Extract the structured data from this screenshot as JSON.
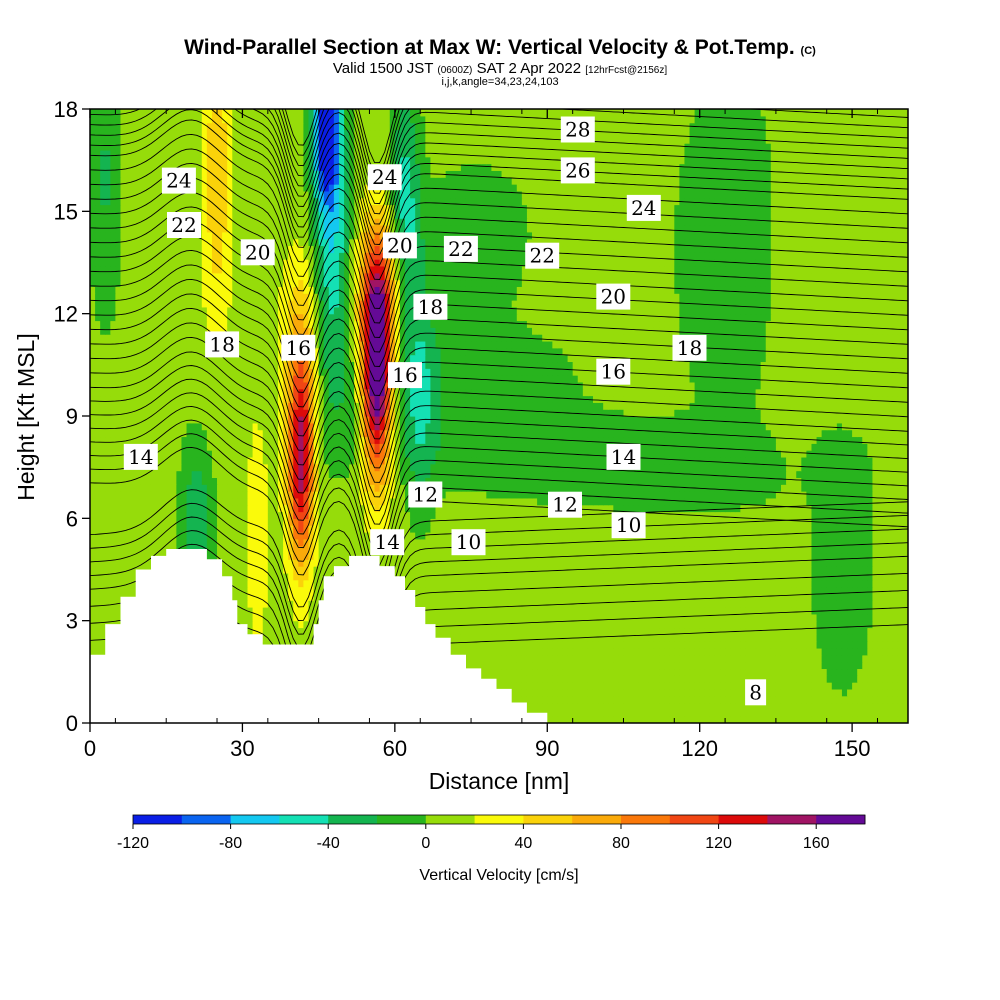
{
  "title": {
    "main": "Wind-Parallel Section at Max W: Vertical Velocity & Pot.Temp.",
    "main_suffix": "(C)",
    "valid_a": "Valid 1500 JST",
    "valid_b": "(0600Z)",
    "valid_c": "SAT 2 Apr 2022",
    "valid_d": "[12hrFcst@2156z]",
    "params": "i,j,k,angle=34,23,24,103"
  },
  "chart_data": {
    "type": "heatmap",
    "xlabel": "Distance [nm]",
    "ylabel": "Height [Kft MSL]",
    "xlim": [
      0,
      161
    ],
    "ylim": [
      0,
      18
    ],
    "xticks": [
      0,
      30,
      60,
      90,
      120,
      150
    ],
    "yticks": [
      0,
      3,
      6,
      9,
      12,
      15,
      18
    ],
    "colorbar": {
      "title": "Vertical Velocity [cm/s]",
      "boundaries": [
        -120,
        -100,
        -80,
        -60,
        -40,
        -20,
        0,
        20,
        40,
        60,
        80,
        100,
        120,
        140,
        160,
        180
      ],
      "colors": [
        "#0a1ee6",
        "#0a64f0",
        "#14c8f0",
        "#14e0b4",
        "#14b450",
        "#28b41e",
        "#96dc0a",
        "#fafa0a",
        "#fad20a",
        "#faaa0a",
        "#fa780a",
        "#f04614",
        "#dc0a0a",
        "#a01464",
        "#640a96"
      ],
      "tick_values": [
        -120,
        -80,
        -40,
        0,
        40,
        80,
        120,
        160
      ],
      "tick_labels": [
        "-120",
        "-80",
        "-40",
        "0",
        "40",
        "80",
        "120",
        "160"
      ]
    },
    "vertical_velocity_features": [
      {
        "name": "main updraft core",
        "x": 56.5,
        "y": 9.8,
        "peak": 160
      },
      {
        "name": "secondary updraft core",
        "x": 41.5,
        "y": 7.5,
        "peak": 120
      },
      {
        "name": "upper downdraft core",
        "x": 46.5,
        "y": 17.0,
        "peak": -100
      }
    ],
    "theta_contour_labels": [
      {
        "text": "28",
        "x": 96,
        "y": 17.4
      },
      {
        "text": "26",
        "x": 96,
        "y": 16.2
      },
      {
        "text": "24",
        "x": 17.5,
        "y": 15.9
      },
      {
        "text": "24",
        "x": 58,
        "y": 16.0
      },
      {
        "text": "24",
        "x": 109,
        "y": 15.1
      },
      {
        "text": "22",
        "x": 18.5,
        "y": 14.6
      },
      {
        "text": "22",
        "x": 73,
        "y": 13.9
      },
      {
        "text": "22",
        "x": 89,
        "y": 13.7
      },
      {
        "text": "20",
        "x": 33,
        "y": 13.8
      },
      {
        "text": "20",
        "x": 61,
        "y": 14.0
      },
      {
        "text": "20",
        "x": 103,
        "y": 12.5
      },
      {
        "text": "18",
        "x": 26,
        "y": 11.1
      },
      {
        "text": "18",
        "x": 67,
        "y": 12.2
      },
      {
        "text": "18",
        "x": 118,
        "y": 11.0
      },
      {
        "text": "16",
        "x": 41,
        "y": 11.0
      },
      {
        "text": "16",
        "x": 62,
        "y": 10.2
      },
      {
        "text": "16",
        "x": 103,
        "y": 10.3
      },
      {
        "text": "14",
        "x": 10,
        "y": 7.8
      },
      {
        "text": "14",
        "x": 105,
        "y": 7.8
      },
      {
        "text": "14",
        "x": 58.5,
        "y": 5.3
      },
      {
        "text": "12",
        "x": 66,
        "y": 6.7
      },
      {
        "text": "12",
        "x": 93.5,
        "y": 6.4
      },
      {
        "text": "10",
        "x": 74.5,
        "y": 5.3
      },
      {
        "text": "10",
        "x": 106,
        "y": 5.8
      },
      {
        "text": "8",
        "x": 131,
        "y": 0.9
      }
    ]
  },
  "colors": {
    "background": "#ffffff",
    "terrain": "#ffffff",
    "contour": "#000000"
  }
}
